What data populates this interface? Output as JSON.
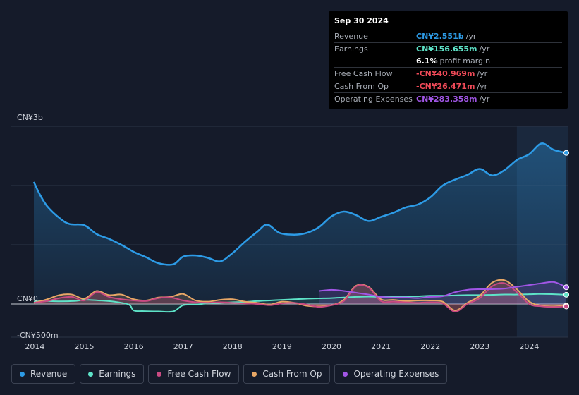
{
  "tooltip": {
    "date": "Sep 30 2024",
    "rows": [
      {
        "label": "Revenue",
        "value": "CN¥2.551b",
        "unit": "/yr",
        "color": "#2d9be6"
      },
      {
        "label": "Earnings",
        "value": "CN¥156.655m",
        "unit": "/yr",
        "color": "#5ee3c8"
      },
      {
        "label": "",
        "value": "6.1%",
        "unit": "profit margin",
        "color": "#ffffff"
      },
      {
        "label": "Free Cash Flow",
        "value": "-CN¥40.969m",
        "unit": "/yr",
        "color": "#f04a58"
      },
      {
        "label": "Cash From Op",
        "value": "-CN¥26.471m",
        "unit": "/yr",
        "color": "#f04a58"
      },
      {
        "label": "Operating Expenses",
        "value": "CN¥283.358m",
        "unit": "/yr",
        "color": "#a156e6"
      }
    ]
  },
  "legend": [
    {
      "label": "Revenue",
      "color": "#2d9be6"
    },
    {
      "label": "Earnings",
      "color": "#5ee3c8"
    },
    {
      "label": "Free Cash Flow",
      "color": "#c94a82"
    },
    {
      "label": "Cash From Op",
      "color": "#e8a766"
    },
    {
      "label": "Operating Expenses",
      "color": "#a156e6"
    }
  ],
  "chart_data": {
    "type": "area",
    "unit": "CN¥m",
    "y_axis_labels": [
      "CN¥3b",
      "CN¥0",
      "-CN¥500m"
    ],
    "ylim": [
      -500,
      3000
    ],
    "x_ticks": [
      "2014",
      "2015",
      "2016",
      "2017",
      "2018",
      "2019",
      "2020",
      "2021",
      "2022",
      "2023",
      "2024"
    ],
    "x_range": [
      2013.98,
      2024.75
    ],
    "forecast_band_start": 2023.75,
    "series": [
      {
        "name": "Revenue",
        "color": "#2d9be6",
        "x": [
          2013.98,
          2014.1,
          2014.25,
          2014.5,
          2014.7,
          2015.0,
          2015.25,
          2015.5,
          2015.75,
          2016.0,
          2016.25,
          2016.5,
          2016.8,
          2017.0,
          2017.25,
          2017.5,
          2017.75,
          2018.0,
          2018.25,
          2018.5,
          2018.7,
          2018.95,
          2019.25,
          2019.5,
          2019.75,
          2020.0,
          2020.25,
          2020.5,
          2020.75,
          2021.0,
          2021.25,
          2021.5,
          2021.75,
          2022.0,
          2022.25,
          2022.5,
          2022.75,
          2023.0,
          2023.25,
          2023.5,
          2023.75,
          2024.0,
          2024.25,
          2024.5,
          2024.75
        ],
        "values": [
          2060,
          1850,
          1650,
          1450,
          1350,
          1330,
          1180,
          1100,
          1000,
          880,
          790,
          690,
          670,
          800,
          820,
          780,
          720,
          860,
          1050,
          1220,
          1340,
          1200,
          1170,
          1200,
          1300,
          1480,
          1560,
          1500,
          1400,
          1470,
          1540,
          1630,
          1680,
          1800,
          2000,
          2100,
          2180,
          2280,
          2170,
          2260,
          2430,
          2530,
          2710,
          2600,
          2551
        ]
      },
      {
        "name": "Earnings",
        "color": "#5ee3c8",
        "x": [
          2013.98,
          2014.2,
          2014.5,
          2014.8,
          2015.0,
          2015.3,
          2015.6,
          2015.9,
          2016.0,
          2016.2,
          2016.5,
          2016.8,
          2017.0,
          2017.25,
          2017.5,
          2017.75,
          2018.0,
          2018.25,
          2018.5,
          2018.75,
          2019.0,
          2019.25,
          2019.5,
          2019.75,
          2020.0,
          2020.25,
          2020.5,
          2020.75,
          2021.0,
          2021.25,
          2021.5,
          2021.75,
          2022.0,
          2022.25,
          2022.5,
          2022.75,
          2023.0,
          2023.25,
          2023.5,
          2023.75,
          2024.0,
          2024.25,
          2024.5,
          2024.75
        ],
        "values": [
          40,
          50,
          45,
          50,
          70,
          60,
          40,
          -10,
          -110,
          -120,
          -125,
          -125,
          -20,
          -10,
          10,
          20,
          30,
          35,
          50,
          60,
          70,
          80,
          90,
          95,
          100,
          110,
          120,
          125,
          120,
          125,
          130,
          130,
          140,
          140,
          145,
          150,
          150,
          155,
          160,
          160,
          165,
          170,
          165,
          156.655
        ]
      },
      {
        "name": "Free Cash Flow",
        "color": "#c94a82",
        "x": [
          2013.98,
          2014.25,
          2014.5,
          2014.75,
          2015.0,
          2015.25,
          2015.5,
          2015.75,
          2016.0,
          2016.25,
          2016.5,
          2016.75,
          2017.0,
          2017.25,
          2017.5,
          2017.75,
          2018.0,
          2018.25,
          2018.5,
          2018.75,
          2019.0,
          2019.25,
          2019.5,
          2019.75,
          2020.0,
          2020.25,
          2020.5,
          2020.75,
          2021.0,
          2021.25,
          2021.5,
          2021.75,
          2022.0,
          2022.25,
          2022.5,
          2022.75,
          2023.0,
          2023.25,
          2023.5,
          2023.75,
          2024.0,
          2024.25,
          2024.5,
          2024.75
        ],
        "values": [
          20,
          50,
          100,
          120,
          60,
          200,
          120,
          80,
          60,
          50,
          100,
          110,
          60,
          30,
          20,
          30,
          20,
          10,
          0,
          -20,
          10,
          20,
          -10,
          -50,
          -20,
          50,
          300,
          280,
          50,
          40,
          30,
          20,
          30,
          10,
          -130,
          0,
          100,
          300,
          350,
          200,
          0,
          -40,
          -50,
          -40.969
        ]
      },
      {
        "name": "Cash From Op",
        "color": "#e8a766",
        "x": [
          2013.98,
          2014.25,
          2014.5,
          2014.75,
          2015.0,
          2015.25,
          2015.5,
          2015.75,
          2016.0,
          2016.25,
          2016.5,
          2016.75,
          2017.0,
          2017.25,
          2017.5,
          2017.75,
          2018.0,
          2018.25,
          2018.5,
          2018.75,
          2019.0,
          2019.25,
          2019.5,
          2019.75,
          2020.0,
          2020.25,
          2020.5,
          2020.75,
          2021.0,
          2021.25,
          2021.5,
          2021.75,
          2022.0,
          2022.25,
          2022.5,
          2022.75,
          2023.0,
          2023.25,
          2023.5,
          2023.75,
          2024.0,
          2024.25,
          2024.5,
          2024.75
        ],
        "values": [
          20,
          80,
          150,
          160,
          90,
          220,
          150,
          160,
          80,
          60,
          110,
          120,
          170,
          60,
          40,
          70,
          80,
          40,
          20,
          -10,
          40,
          20,
          -30,
          -40,
          -20,
          70,
          310,
          290,
          80,
          70,
          50,
          60,
          60,
          40,
          -110,
          20,
          140,
          360,
          400,
          250,
          40,
          -30,
          -40,
          -26.471
        ]
      },
      {
        "name": "Operating Expenses",
        "color": "#a156e6",
        "x": [
          2019.75,
          2020.0,
          2020.25,
          2020.5,
          2020.75,
          2021.0,
          2021.25,
          2021.5,
          2021.75,
          2022.0,
          2022.25,
          2022.5,
          2022.75,
          2023.0,
          2023.25,
          2023.5,
          2023.75,
          2024.0,
          2024.25,
          2024.5,
          2024.75
        ],
        "values": [
          220,
          240,
          220,
          190,
          160,
          120,
          110,
          110,
          100,
          120,
          130,
          200,
          240,
          250,
          250,
          260,
          290,
          320,
          350,
          370,
          283.358
        ]
      }
    ]
  }
}
